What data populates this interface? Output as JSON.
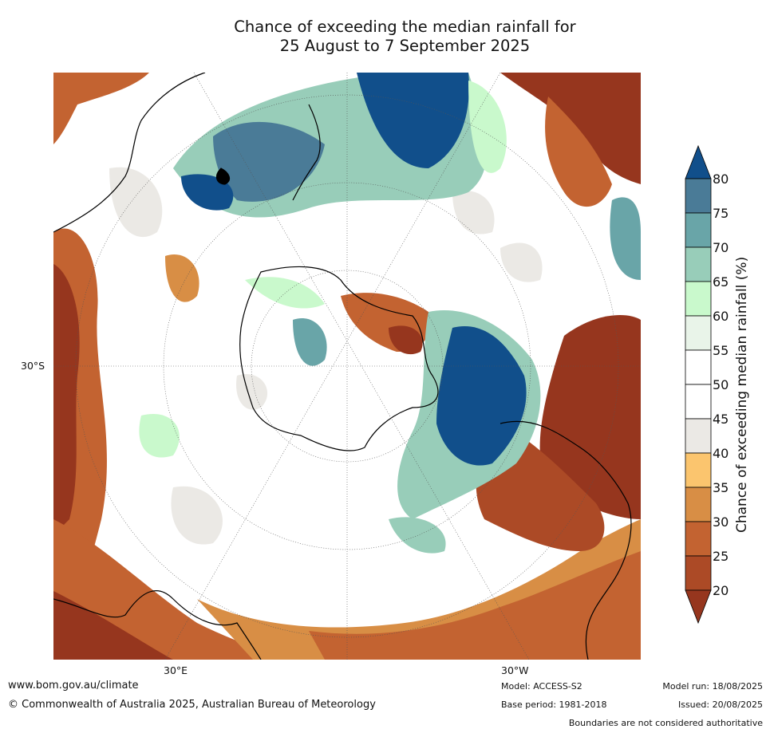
{
  "title_line1": "Chance of exceeding the median rainfall for",
  "title_line2": "25 August to 7 September 2025",
  "colorbar": {
    "label": "Chance of exceeding median rainfall (%)",
    "ticks": [
      "20",
      "25",
      "30",
      "35",
      "40",
      "45",
      "50",
      "55",
      "60",
      "65",
      "70",
      "75",
      "80"
    ],
    "colors": [
      "#96361e",
      "#ac4a26",
      "#c36331",
      "#d88e45",
      "#fbc56e",
      "#ebe9e5",
      "#ffffff",
      "#ffffff",
      "#e9f4e9",
      "#c9f9cc",
      "#98cdb9",
      "#69a5a8",
      "#4a7b97",
      "#114f8b"
    ]
  },
  "graticule": {
    "lat_label": "30°S",
    "lon_label_east": "30°E",
    "lon_label_west": "30°W"
  },
  "footer": {
    "website": "www.bom.gov.au/climate",
    "copyright": "© Commonwealth of Australia 2025, Australian Bureau of Meteorology",
    "model": "Model: ACCESS-S2",
    "base_period": "Base period: 1981-2018",
    "model_run": "Model run: 18/08/2025",
    "issued": "Issued: 20/08/2025",
    "boundaries": "Boundaries are not considered authoritative"
  }
}
